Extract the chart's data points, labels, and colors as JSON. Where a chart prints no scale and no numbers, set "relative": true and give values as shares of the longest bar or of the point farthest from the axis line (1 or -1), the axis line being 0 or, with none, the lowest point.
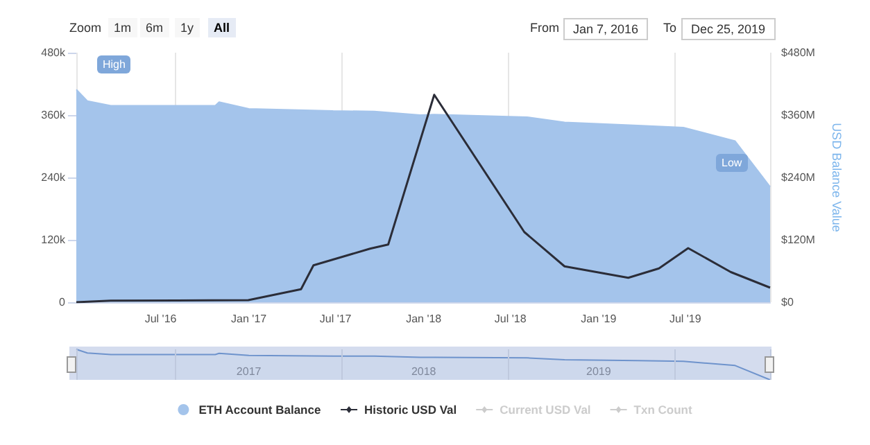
{
  "chart_data": [
    {
      "type": "area",
      "ylabel": null,
      "y2label": "USD Balance Value",
      "annotations": [
        "Zoom",
        "1m",
        "6m",
        "1y",
        "All",
        "From",
        "Jan 7, 2016",
        "To",
        "Dec 25, 2019",
        "High",
        "Low"
      ],
      "series": [
        {
          "name": "ETH Account Balance",
          "color": "#a4c4eb",
          "x": [
            "2016-01-07",
            "2016-01-30",
            "2016-03-19",
            "2016-10-23",
            "2016-10-31",
            "2017-01-01",
            "2017-06-26",
            "2017-09-20",
            "2017-12-25",
            "2018-01-23",
            "2018-08-05",
            "2018-10-22",
            "2019-03-24",
            "2019-06-27",
            "2019-10-13",
            "2019-12-25"
          ],
          "values": [
            409000,
            387000,
            378000,
            378000,
            385000,
            372000,
            368000,
            367000,
            360000,
            361000,
            356000,
            346000,
            340000,
            336000,
            310000,
            222000
          ]
        },
        {
          "name": "Historic USD Val",
          "type": "line",
          "axis": "y2",
          "color": "#2b2d38",
          "x": [
            "2016-01-07",
            "2016-03-19",
            "2016-12-31",
            "2017-04-20",
            "2017-05-16",
            "2017-09-11",
            "2017-10-19",
            "2018-01-23",
            "2018-07-30",
            "2018-10-22",
            "2019-03-04",
            "2019-05-07",
            "2019-07-07",
            "2019-10-04",
            "2019-12-25"
          ],
          "values": [
            0,
            3,
            4,
            25,
            71,
            103,
            111,
            399,
            135,
            69,
            47,
            65,
            104,
            58,
            28
          ]
        },
        {
          "name": "Current USD Val",
          "type": "line",
          "axis": "y2",
          "color": "#cccccc"
        },
        {
          "name": "Txn Count",
          "type": "line",
          "axis": "y2",
          "color": "#cccccc"
        }
      ],
      "xlim": [
        "2016-01-07",
        "2019-12-25"
      ],
      "xticks": [
        {
          "value": "2016-07-01",
          "label": "Jul '16"
        },
        {
          "value": "2017-01-01",
          "label": "Jan '17"
        },
        {
          "value": "2017-07-01",
          "label": "Jul '17"
        },
        {
          "value": "2018-01-01",
          "label": "Jan '18"
        },
        {
          "value": "2018-07-01",
          "label": "Jul '18"
        },
        {
          "value": "2019-01-01",
          "label": "Jan '19"
        },
        {
          "value": "2019-07-01",
          "label": "Jul '19"
        }
      ],
      "ylim": [
        0,
        480000
      ],
      "yticks": [
        0,
        {
          "value": 120000,
          "label": "120k"
        },
        {
          "value": 240000,
          "label": "240k"
        },
        {
          "value": 360000,
          "label": "360k"
        },
        {
          "value": 480000,
          "label": "480k"
        }
      ],
      "y2lim": [
        0,
        480
      ],
      "y2ticks": [
        {
          "value": 0,
          "label": "$0"
        },
        {
          "value": 120,
          "label": "$120M"
        },
        {
          "value": 240,
          "label": "$240M"
        },
        {
          "value": 360,
          "label": "$360M"
        },
        {
          "value": 480,
          "label": "$480M"
        }
      ],
      "grid": "x",
      "legend": "bottom"
    },
    {
      "type": "area",
      "relative": true,
      "color": "#6e93cc",
      "x": [
        "2016-01-07",
        "2016-01-30",
        "2016-03-19",
        "2016-10-23",
        "2016-10-31",
        "2017-01-01",
        "2017-06-26",
        "2017-09-20",
        "2017-12-25",
        "2018-01-23",
        "2018-08-05",
        "2018-10-22",
        "2019-03-24",
        "2019-06-27",
        "2019-10-13",
        "2019-12-25"
      ],
      "values": [
        1,
        0.88,
        0.83,
        0.83,
        0.87,
        0.8,
        0.78,
        0.78,
        0.74,
        0.74,
        0.72,
        0.66,
        0.63,
        0.61,
        0.47,
        0
      ],
      "xlim": [
        "2016-01-07",
        "2019-12-25"
      ],
      "xticks": [
        {
          "value": "2017-01-01",
          "label": "2017"
        },
        {
          "value": "2018-01-01",
          "label": "2018"
        },
        {
          "value": "2019-01-01",
          "label": "2019"
        }
      ],
      "grid": "x"
    }
  ]
}
